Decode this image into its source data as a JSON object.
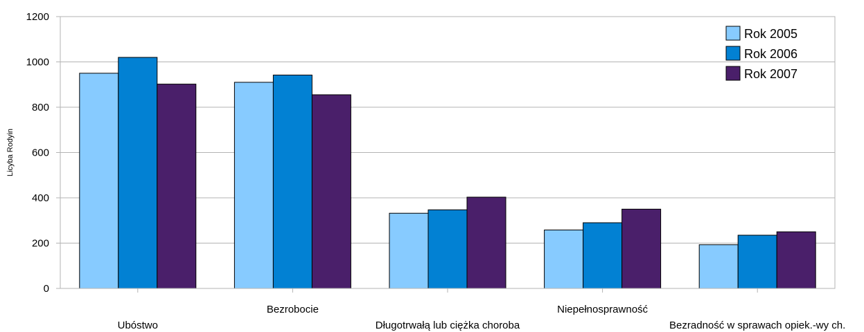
{
  "chart_data": {
    "type": "bar",
    "title": "",
    "xlabel": "",
    "ylabel": "Licyba Rodyin",
    "ylim": [
      0,
      1200
    ],
    "yticks": [
      0,
      200,
      400,
      600,
      800,
      1000,
      1200
    ],
    "grid": true,
    "legend_position": "top-right",
    "categories": [
      "Ubóstwo",
      "Bezrobocie",
      "Długotrwałą lub ciężka choroba",
      "Niepełnosprawność",
      "Bezradność w sprawach opiek.-wy ch."
    ],
    "series": [
      {
        "name": "Rok 2005",
        "color": "#87CBFF",
        "values": [
          950,
          910,
          332,
          258,
          193
        ]
      },
      {
        "name": "Rok 2006",
        "color": "#0281D3",
        "values": [
          1020,
          942,
          347,
          290,
          235
        ]
      },
      {
        "name": "Rok 2007",
        "color": "#4A1F6A",
        "values": [
          902,
          855,
          403,
          350,
          250
        ]
      }
    ]
  }
}
